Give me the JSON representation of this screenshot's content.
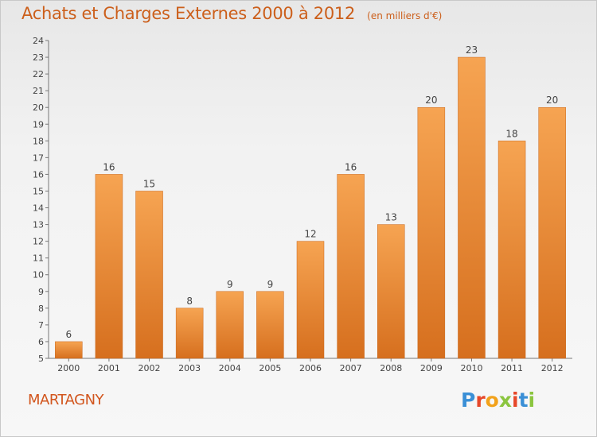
{
  "header": {
    "title": "Achats et Charges Externes 2000 à 2012",
    "subtitle": "(en milliers d'€)"
  },
  "footer": {
    "commune": "MARTAGNY",
    "brand_letters": [
      "P",
      "r",
      "o",
      "x",
      "i",
      "t",
      "i"
    ],
    "brand_colors": [
      "#3a8fd6",
      "#e6482a",
      "#f2a21b",
      "#8bc53f",
      "#e6482a",
      "#3a8fd6",
      "#8bc53f"
    ]
  },
  "colors": {
    "bar_top": "#f6a452",
    "bar_bottom": "#d66f1e",
    "title": "#cc5f1b"
  },
  "chart_data": {
    "type": "bar",
    "title": "Achats et Charges Externes 2000 à 2012",
    "subtitle": "(en milliers d'€)",
    "categories": [
      "2000",
      "2001",
      "2002",
      "2003",
      "2004",
      "2005",
      "2006",
      "2007",
      "2008",
      "2009",
      "2010",
      "2011",
      "2012"
    ],
    "values": [
      6,
      16,
      15,
      8,
      9,
      9,
      12,
      16,
      13,
      20,
      23,
      18,
      20
    ],
    "ylim": [
      5,
      24
    ],
    "yticks": [
      5,
      6,
      7,
      8,
      9,
      10,
      11,
      12,
      13,
      14,
      15,
      16,
      17,
      18,
      19,
      20,
      21,
      22,
      23,
      24
    ],
    "xlabel": "",
    "ylabel": "",
    "grid": false,
    "data_labels": true
  }
}
